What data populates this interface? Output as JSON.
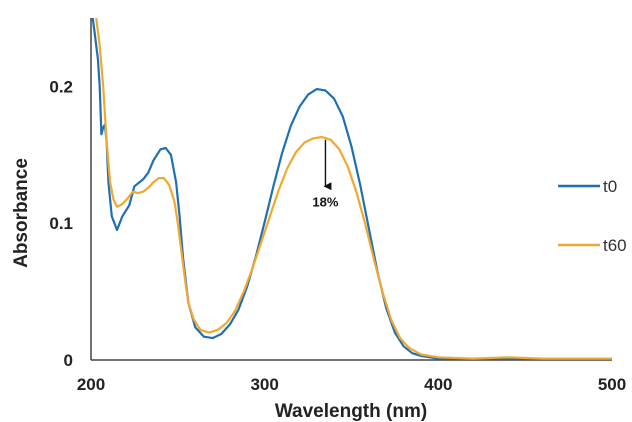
{
  "chart_data": {
    "type": "line",
    "xlabel": "Wavelength (nm)",
    "ylabel": "Absorbance",
    "xlim": [
      200,
      500
    ],
    "ylim": [
      0,
      0.25
    ],
    "x_ticks": [
      "200",
      "300",
      "400",
      "500"
    ],
    "y_ticks": [
      "0",
      "0.1",
      "0.2"
    ],
    "x_tick_values": [
      200,
      300,
      400,
      500
    ],
    "y_tick_values": [
      0,
      0.1,
      0.2
    ],
    "grid": false,
    "legend_position": "right",
    "series": [
      {
        "name": "t0",
        "color": "#1f6fb5",
        "points": [
          [
            201,
            0.25
          ],
          [
            202,
            0.24
          ],
          [
            204,
            0.22
          ],
          [
            205,
            0.2
          ],
          [
            206,
            0.165
          ],
          [
            207,
            0.17
          ],
          [
            208,
            0.172
          ],
          [
            209,
            0.16
          ],
          [
            210,
            0.13
          ],
          [
            212,
            0.105
          ],
          [
            215,
            0.095
          ],
          [
            218,
            0.105
          ],
          [
            222,
            0.113
          ],
          [
            225,
            0.127
          ],
          [
            230,
            0.132
          ],
          [
            233,
            0.137
          ],
          [
            236,
            0.146
          ],
          [
            240,
            0.154
          ],
          [
            243,
            0.155
          ],
          [
            246,
            0.15
          ],
          [
            249,
            0.13
          ],
          [
            251,
            0.105
          ],
          [
            253,
            0.075
          ],
          [
            256,
            0.042
          ],
          [
            260,
            0.024
          ],
          [
            265,
            0.017
          ],
          [
            270,
            0.016
          ],
          [
            275,
            0.019
          ],
          [
            280,
            0.026
          ],
          [
            285,
            0.037
          ],
          [
            290,
            0.054
          ],
          [
            295,
            0.076
          ],
          [
            300,
            0.101
          ],
          [
            305,
            0.127
          ],
          [
            310,
            0.151
          ],
          [
            315,
            0.171
          ],
          [
            320,
            0.185
          ],
          [
            325,
            0.194
          ],
          [
            330,
            0.198
          ],
          [
            335,
            0.197
          ],
          [
            340,
            0.191
          ],
          [
            345,
            0.178
          ],
          [
            350,
            0.156
          ],
          [
            355,
            0.128
          ],
          [
            360,
            0.096
          ],
          [
            365,
            0.064
          ],
          [
            370,
            0.038
          ],
          [
            375,
            0.02
          ],
          [
            380,
            0.01
          ],
          [
            385,
            0.005
          ],
          [
            390,
            0.003
          ],
          [
            400,
            0.001
          ],
          [
            420,
            0.001
          ],
          [
            450,
            0.001
          ],
          [
            480,
            0.001
          ],
          [
            500,
            0.001
          ]
        ]
      },
      {
        "name": "t60",
        "color": "#f0a830",
        "points": [
          [
            203,
            0.25
          ],
          [
            205,
            0.23
          ],
          [
            207,
            0.2
          ],
          [
            209,
            0.16
          ],
          [
            211,
            0.13
          ],
          [
            213,
            0.117
          ],
          [
            215,
            0.112
          ],
          [
            218,
            0.114
          ],
          [
            221,
            0.118
          ],
          [
            224,
            0.123
          ],
          [
            227,
            0.122
          ],
          [
            230,
            0.123
          ],
          [
            233,
            0.126
          ],
          [
            236,
            0.13
          ],
          [
            239,
            0.133
          ],
          [
            242,
            0.133
          ],
          [
            245,
            0.128
          ],
          [
            248,
            0.116
          ],
          [
            250,
            0.1
          ],
          [
            252,
            0.08
          ],
          [
            254,
            0.06
          ],
          [
            256,
            0.042
          ],
          [
            259,
            0.03
          ],
          [
            263,
            0.022
          ],
          [
            268,
            0.02
          ],
          [
            273,
            0.022
          ],
          [
            278,
            0.027
          ],
          [
            283,
            0.036
          ],
          [
            288,
            0.05
          ],
          [
            293,
            0.067
          ],
          [
            298,
            0.086
          ],
          [
            303,
            0.105
          ],
          [
            308,
            0.124
          ],
          [
            313,
            0.14
          ],
          [
            318,
            0.152
          ],
          [
            323,
            0.159
          ],
          [
            328,
            0.162
          ],
          [
            333,
            0.163
          ],
          [
            338,
            0.161
          ],
          [
            343,
            0.154
          ],
          [
            348,
            0.141
          ],
          [
            353,
            0.122
          ],
          [
            358,
            0.099
          ],
          [
            363,
            0.073
          ],
          [
            368,
            0.049
          ],
          [
            373,
            0.029
          ],
          [
            378,
            0.016
          ],
          [
            383,
            0.009
          ],
          [
            390,
            0.004
          ],
          [
            400,
            0.002
          ],
          [
            420,
            0.001
          ],
          [
            440,
            0.002
          ],
          [
            460,
            0.001
          ],
          [
            480,
            0.001
          ],
          [
            500,
            0.001
          ]
        ]
      }
    ],
    "annotation": {
      "text": "18%",
      "arrow_x": 335,
      "arrow_from_y": 0.161,
      "arrow_to_y": 0.127
    }
  }
}
